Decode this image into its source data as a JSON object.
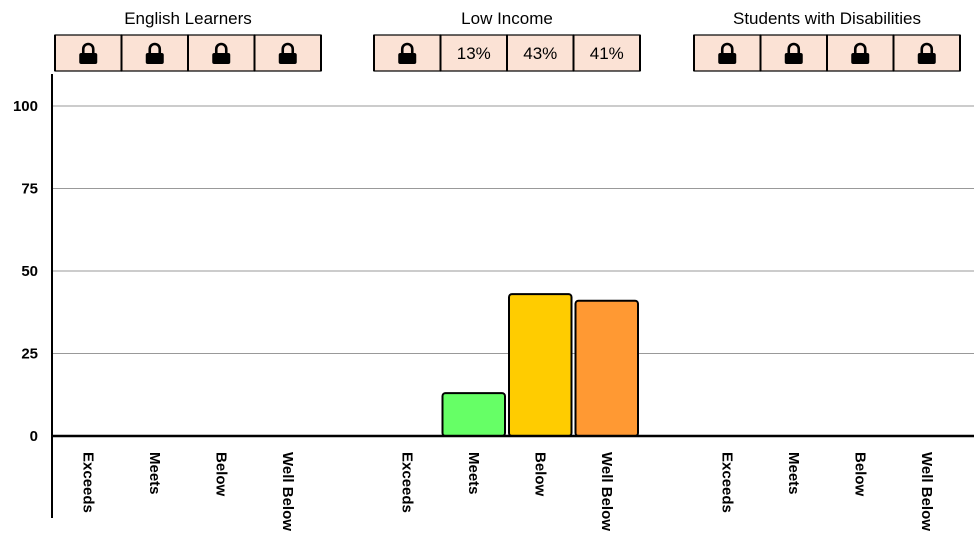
{
  "chart_data": {
    "type": "bar",
    "ylim": [
      0,
      100
    ],
    "yticks": [
      "0",
      "25",
      "50",
      "75",
      "100"
    ],
    "grid": true,
    "categories": [
      "Exceeds",
      "Meets",
      "Below",
      "Well Below"
    ],
    "colors": {
      "Exceeds": "#3c9be0",
      "Meets": "#66ff66",
      "Below": "#ffcc00",
      "Well Below": "#ff9933",
      "cell_background": "#fbe2d5",
      "grid": "#999999"
    },
    "groups": [
      {
        "title": "English Learners",
        "cells": [
          "lock",
          "lock",
          "lock",
          "lock"
        ],
        "values": [
          null,
          null,
          null,
          null
        ]
      },
      {
        "title": "Low Income",
        "cells": [
          "lock",
          "13%",
          "43%",
          "41%"
        ],
        "values": [
          null,
          13,
          43,
          41
        ]
      },
      {
        "title": "Students with Disabilities",
        "cells": [
          "lock",
          "lock",
          "lock",
          "lock"
        ],
        "values": [
          null,
          null,
          null,
          null
        ]
      }
    ]
  }
}
